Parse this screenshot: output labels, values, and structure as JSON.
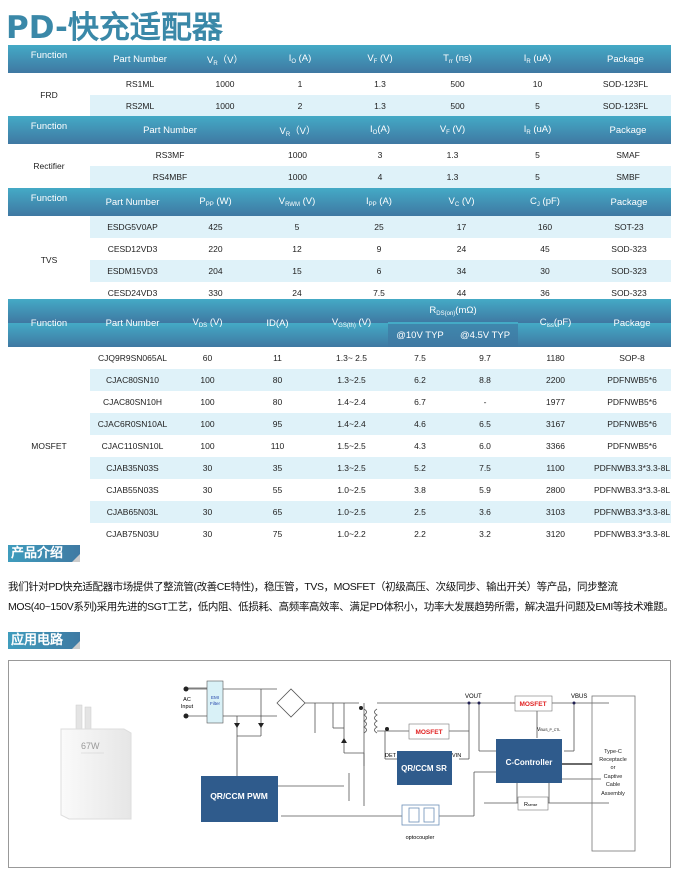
{
  "page_title": "PD-快充适配器",
  "colors": {
    "header_start": "#44aac6",
    "header_end": "#3f78a2",
    "row_shade": "#dff2f9",
    "title": "#3a88a8",
    "mosfet_label": "#e02020",
    "block": "#2f5b8c"
  },
  "tables": [
    {
      "function": "FRD",
      "headers": [
        {
          "t": "Function"
        },
        {
          "t": "Part Number"
        },
        {
          "t": "V",
          "s": "R",
          "r": "（V）"
        },
        {
          "t": "I",
          "s": "O",
          "r": " (A)"
        },
        {
          "t": "V",
          "s": "F",
          "r": " (V)"
        },
        {
          "t": "T",
          "s": "rr",
          "r": " (ns)"
        },
        {
          "t": "I",
          "s": "R",
          "r": " (uA)"
        },
        {
          "t": "Package"
        }
      ],
      "rows": [
        [
          "RS1ML",
          "1000",
          "1",
          "1.3",
          "500",
          "10",
          "SOD-123FL"
        ],
        [
          "RS2ML",
          "1000",
          "2",
          "1.3",
          "500",
          "5",
          "SOD-123FL"
        ]
      ]
    },
    {
      "function": "Rectifier",
      "headers": [
        {
          "t": "Function"
        },
        {
          "t": "Part Number"
        },
        {
          "t": "V",
          "s": "R",
          "r": "（V）"
        },
        {
          "t": "I",
          "s": "O",
          "r": "(A)"
        },
        {
          "t": "V",
          "s": "F",
          "r": " (V)"
        },
        {
          "t": "I",
          "s": "R",
          "r": " (uA)"
        },
        {
          "t": "Package"
        }
      ],
      "rows": [
        [
          "RS3MF",
          "1000",
          "3",
          "1.3",
          "5",
          "SMAF"
        ],
        [
          "RS4MBF",
          "1000",
          "4",
          "1.3",
          "5",
          "SMBF"
        ]
      ]
    },
    {
      "function": "TVS",
      "headers": [
        {
          "t": "Function"
        },
        {
          "t": "Part  Number"
        },
        {
          "t": "P",
          "s": "PP",
          "r": "  (W)"
        },
        {
          "t": "V",
          "s": "RWM",
          "r": "  (V)"
        },
        {
          "t": "I",
          "s": "PP",
          "r": " (A)"
        },
        {
          "t": "V",
          "s": "C",
          "r": "  (V)"
        },
        {
          "t": "C",
          "s": "J",
          "r": "  (pF)"
        },
        {
          "t": "Package"
        }
      ],
      "rows": [
        [
          "ESDG5V0AP",
          "425",
          "5",
          "25",
          "17",
          "160",
          "SOT-23"
        ],
        [
          "CESD12VD3",
          "220",
          "12",
          "9",
          "24",
          "45",
          "SOD-323"
        ],
        [
          "ESDM15VD3",
          "204",
          "15",
          "6",
          "34",
          "30",
          "SOD-323"
        ],
        [
          "CESD24VD3",
          "330",
          "24",
          "7.5",
          "44",
          "36",
          "SOD-323"
        ]
      ]
    },
    {
      "function": "MOSFET",
      "headers": [
        {
          "t": "Function"
        },
        {
          "t": "Part  Number"
        },
        {
          "t": "V",
          "s": "DS",
          "r": " (V)"
        },
        {
          "t": "ID(A)"
        },
        {
          "t": "V",
          "s": "GS(th)",
          "r": " (V)"
        },
        {
          "t": "R",
          "s": "DS(on)",
          "r": "(mΩ)",
          "group": true,
          "subs": [
            "@10V  TYP",
            "@4.5V TYP"
          ]
        },
        {
          "t": "C",
          "s": "iss",
          "r": "(pF)"
        },
        {
          "t": "Package"
        }
      ],
      "rows": [
        [
          "CJQ9R9SN065AL",
          "60",
          "11",
          "1.3~ 2.5",
          "7.5",
          "9.7",
          "1180",
          "SOP-8"
        ],
        [
          "CJAC80SN10",
          "100",
          "80",
          "1.3~2.5",
          "6.2",
          "8.8",
          "2200",
          "PDFNWB5*6"
        ],
        [
          "CJAC80SN10H",
          "100",
          "80",
          "1.4~2.4",
          "6.7",
          "-",
          "1977",
          "PDFNWB5*6"
        ],
        [
          "CJAC6R0SN10AL",
          "100",
          "95",
          "1.4~2.4",
          "4.6",
          "6.5",
          "3167",
          "PDFNWB5*6"
        ],
        [
          "CJAC110SN10L",
          "100",
          "110",
          "1.5~2.5",
          "4.3",
          "6.0",
          "3366",
          "PDFNWB5*6"
        ],
        [
          "CJAB35N03S",
          "30",
          "35",
          "1.3~2.5",
          "5.2",
          "7.5",
          "1100",
          "PDFNWB3.3*3.3-8L"
        ],
        [
          "CJAB55N03S",
          "30",
          "55",
          "1.0~2.5",
          "3.8",
          "5.9",
          "2800",
          "PDFNWB3.3*3.3-8L"
        ],
        [
          "CJAB65N03L",
          "30",
          "65",
          "1.0~2.5",
          "2.5",
          "3.6",
          "3103",
          "PDFNWB3.3*3.3-8L"
        ],
        [
          "CJAB75N03U",
          "30",
          "75",
          "1.0~2.2",
          "2.2",
          "3.2",
          "3120",
          "PDFNWB3.3*3.3-8L"
        ]
      ]
    }
  ],
  "intro": {
    "heading": "产品介绍",
    "line1": "我们针对PD快充适配器市场提供了整流管(改善CE特性)，稳压管，TVS，MOSFET（初级高压、次级同步、输出开关）等产品，同步整流",
    "line2": "MOS(40~150V系列)采用先进的SGT工艺，低内阻、低损耗、高频率高效率、满足PD体积小，功率大发展趋势所需，解决温升问题及EMI等技术难题。"
  },
  "circuit": {
    "heading": "应用电路",
    "charger_label": "67W",
    "ac_input": [
      "AC",
      "Input"
    ],
    "emi_filter": [
      "EMI",
      "Filter"
    ],
    "pwm_block": "QR/CCM PWM",
    "sr_block": "QR/CCM SR",
    "controller_block": "C-Controller",
    "mosfet_sr": "MOSFET",
    "mosfet_out": "MOSFET",
    "det": "DET",
    "vin": "VIN",
    "vout": "VOUT",
    "vbus": "VBUS",
    "vbus_ctl": {
      "t": "V",
      "s": "BUS_P_CTL"
    },
    "rsense": {
      "t": "R",
      "s": "sense"
    },
    "optocoupler": "optocoupler",
    "typec": [
      "Type-C",
      "Receptacle",
      "or",
      "Captive",
      "Cable",
      "Assembly"
    ]
  }
}
